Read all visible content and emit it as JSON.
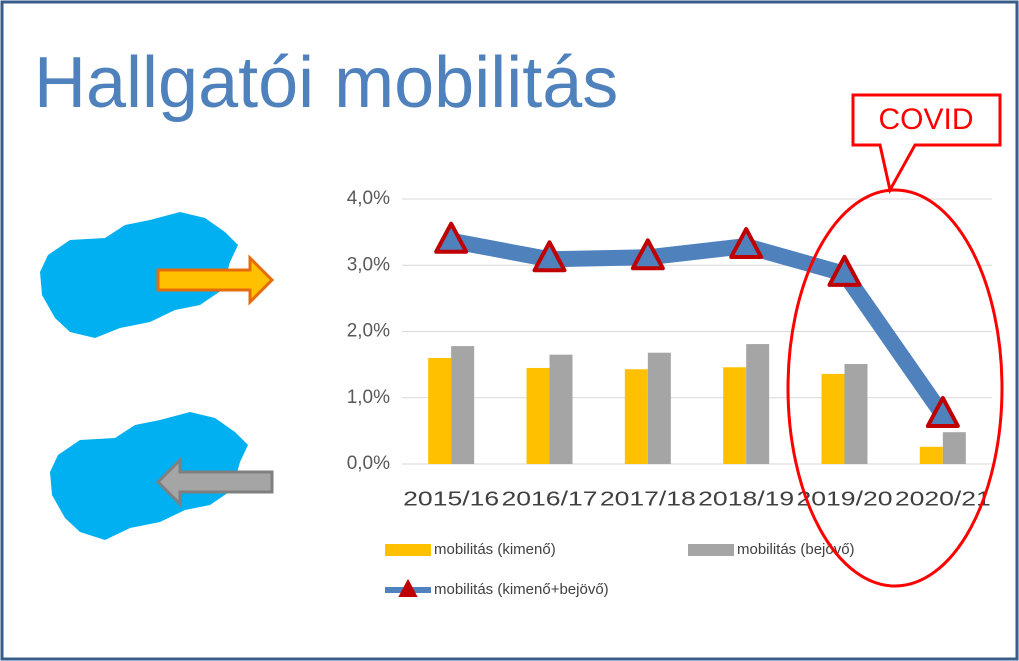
{
  "title": "Hallgatói mobilitás",
  "callout": "COVID",
  "chart_data": {
    "type": "bar",
    "categories": [
      "2015/16",
      "2016/17",
      "2017/18",
      "2018/19",
      "2019/20",
      "2020/21"
    ],
    "series": [
      {
        "name": "mobilitás (kimenő)",
        "type": "bar",
        "color": "#ffc000",
        "values": [
          1.6,
          1.45,
          1.43,
          1.46,
          1.36,
          0.26
        ]
      },
      {
        "name": "mobilitás (bejövő)",
        "type": "bar",
        "color": "#a5a5a5",
        "values": [
          1.78,
          1.65,
          1.68,
          1.81,
          1.51,
          0.48
        ]
      },
      {
        "name": "mobilitás (kimenő+bejövő)",
        "type": "line",
        "color": "#4f81bd",
        "marker_color": "#c00000",
        "values": [
          3.37,
          3.09,
          3.12,
          3.29,
          2.87,
          0.74
        ]
      }
    ],
    "ylim": [
      0,
      4
    ],
    "yticks": [
      {
        "value": 0,
        "label": "0,0%"
      },
      {
        "value": 1,
        "label": "1,0%"
      },
      {
        "value": 2,
        "label": "2,0%"
      },
      {
        "value": 3,
        "label": "3,0%"
      },
      {
        "value": 4,
        "label": "4,0%"
      }
    ],
    "grid": true,
    "legend": "bottom"
  }
}
